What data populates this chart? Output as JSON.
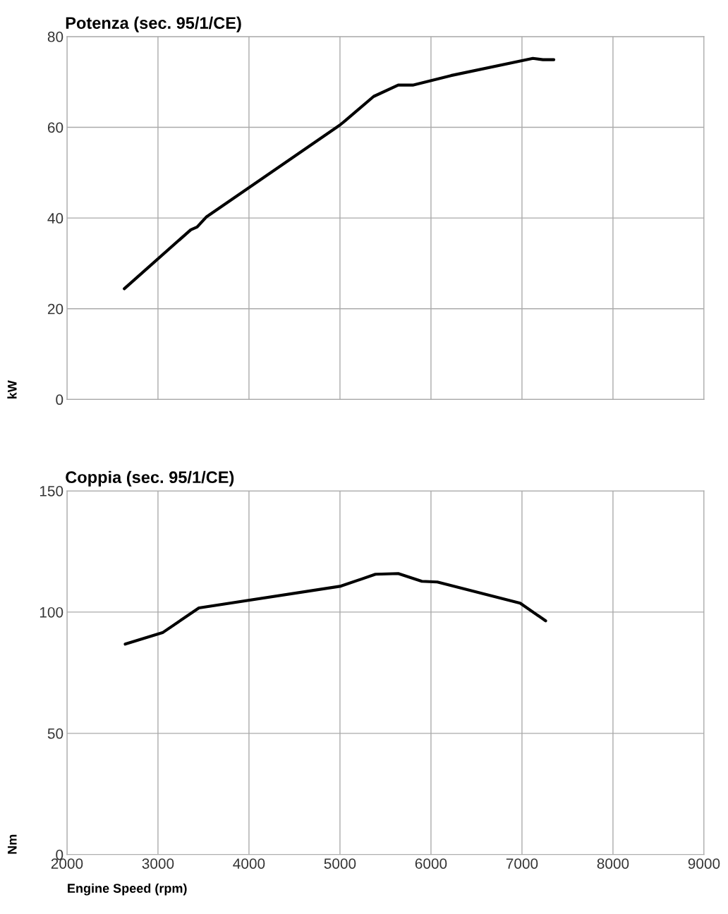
{
  "chart_data": [
    {
      "type": "line",
      "title": "Potenza (sec. 95/1/CE)",
      "ylabel": "kW",
      "tick_labels": "y",
      "grid": true,
      "xlim": [
        2000,
        9000
      ],
      "xticks": [
        2000,
        3000,
        4000,
        5000,
        6000,
        7000,
        8000,
        9000
      ],
      "ylim": [
        0,
        80
      ],
      "yticks": [
        0,
        20,
        40,
        60,
        80
      ],
      "series": [
        {
          "color": "#000000",
          "x": [
            2630,
            3360,
            3430,
            3530,
            5000,
            5060,
            5370,
            5640,
            5800,
            6220,
            7120,
            7230,
            7350
          ],
          "values": [
            24.4,
            37.4,
            38.0,
            40.2,
            60.5,
            61.5,
            66.8,
            69.3,
            69.3,
            71.4,
            75.2,
            74.9,
            74.9
          ]
        }
      ]
    },
    {
      "type": "line",
      "title": "Coppia (sec. 95/1/CE)",
      "ylabel": "Nm",
      "xlabel": "Engine Speed (rpm)",
      "grid": true,
      "xlim": [
        2000,
        9000
      ],
      "xticks": [
        2000,
        3000,
        4000,
        5000,
        6000,
        7000,
        8000,
        9000
      ],
      "ylim": [
        0,
        150
      ],
      "yticks": [
        0,
        50,
        100,
        150
      ],
      "series": [
        {
          "color": "#000000",
          "x": [
            2640,
            3050,
            3450,
            5010,
            5390,
            5640,
            5900,
            6070,
            6980,
            7260
          ],
          "values": [
            86.8,
            91.5,
            101.7,
            110.7,
            115.6,
            115.9,
            112.7,
            112.4,
            103.7,
            96.4
          ]
        }
      ]
    }
  ]
}
